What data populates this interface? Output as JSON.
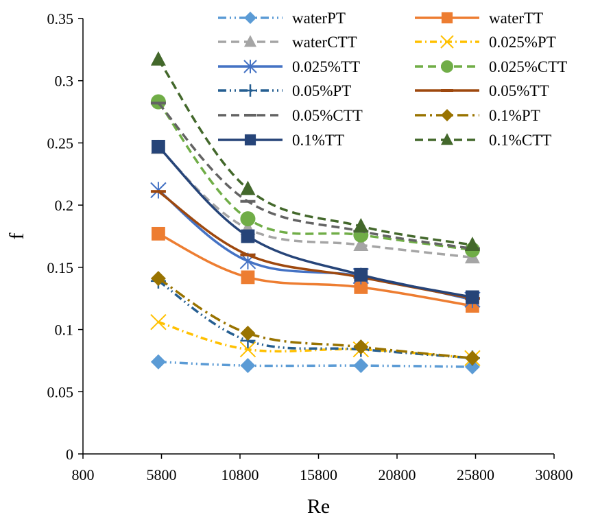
{
  "chart_data": {
    "type": "line",
    "xlabel": "Re",
    "ylabel": "f",
    "xlim": [
      800,
      30800
    ],
    "ylim": [
      0,
      0.35
    ],
    "x_ticks": [
      800,
      5800,
      10800,
      15800,
      20800,
      25800,
      30800
    ],
    "y_ticks": [
      0,
      0.05,
      0.1,
      0.15,
      0.2,
      0.25,
      0.3,
      0.35
    ],
    "x_tick_labels": [
      "800",
      "5800",
      "10800",
      "15800",
      "20800",
      "25800",
      "30800"
    ],
    "y_tick_labels": [
      "0",
      "0.05",
      "0.1",
      "0.15",
      "0.2",
      "0.25",
      "0.3",
      "0.35"
    ],
    "grid": false,
    "legend_position": "top-right",
    "x": [
      5600,
      11300,
      18500,
      25600
    ],
    "series": [
      {
        "name": "waterPT",
        "values": [
          0.074,
          0.071,
          0.071,
          0.07
        ],
        "color": "#5B9BD5",
        "dash": "dashdotdot",
        "marker": "diamond"
      },
      {
        "name": "waterTT",
        "values": [
          0.177,
          0.142,
          0.134,
          0.119
        ],
        "color": "#ED7D31",
        "dash": "solid",
        "marker": "square"
      },
      {
        "name": "waterCTT",
        "values": [
          0.246,
          0.181,
          0.168,
          0.158
        ],
        "color": "#A5A5A5",
        "dash": "dash",
        "marker": "triangle"
      },
      {
        "name": "0.025%PT",
        "values": [
          0.106,
          0.084,
          0.084,
          0.077
        ],
        "color": "#FFC000",
        "dash": "dashdot",
        "marker": "x"
      },
      {
        "name": "0.025%TT",
        "values": [
          0.212,
          0.155,
          0.143,
          0.124
        ],
        "color": "#4472C4",
        "dash": "solid",
        "marker": "star"
      },
      {
        "name": "0.025%CTT",
        "values": [
          0.283,
          0.189,
          0.176,
          0.164
        ],
        "color": "#70AD47",
        "dash": "dash",
        "marker": "circle"
      },
      {
        "name": "0.05%PT",
        "values": [
          0.139,
          0.091,
          0.084,
          0.077
        ],
        "color": "#255E91",
        "dash": "dashdotdot",
        "marker": "plus"
      },
      {
        "name": "0.05%TT",
        "values": [
          0.211,
          0.16,
          0.142,
          0.125
        ],
        "color": "#9E480E",
        "dash": "solid",
        "marker": "dash"
      },
      {
        "name": "0.05%CTT",
        "values": [
          0.282,
          0.203,
          0.179,
          0.165
        ],
        "color": "#636363",
        "dash": "dash",
        "marker": "dash"
      },
      {
        "name": "0.1%PT",
        "values": [
          0.141,
          0.097,
          0.086,
          0.077
        ],
        "color": "#997300",
        "dash": "longdashdot",
        "marker": "diamond"
      },
      {
        "name": "0.1%TT",
        "values": [
          0.247,
          0.175,
          0.144,
          0.126
        ],
        "color": "#264478",
        "dash": "solid",
        "marker": "square"
      },
      {
        "name": "0.1%CTT",
        "values": [
          0.317,
          0.213,
          0.183,
          0.168
        ],
        "color": "#43682B",
        "dash": "dash",
        "marker": "triangle"
      }
    ]
  }
}
